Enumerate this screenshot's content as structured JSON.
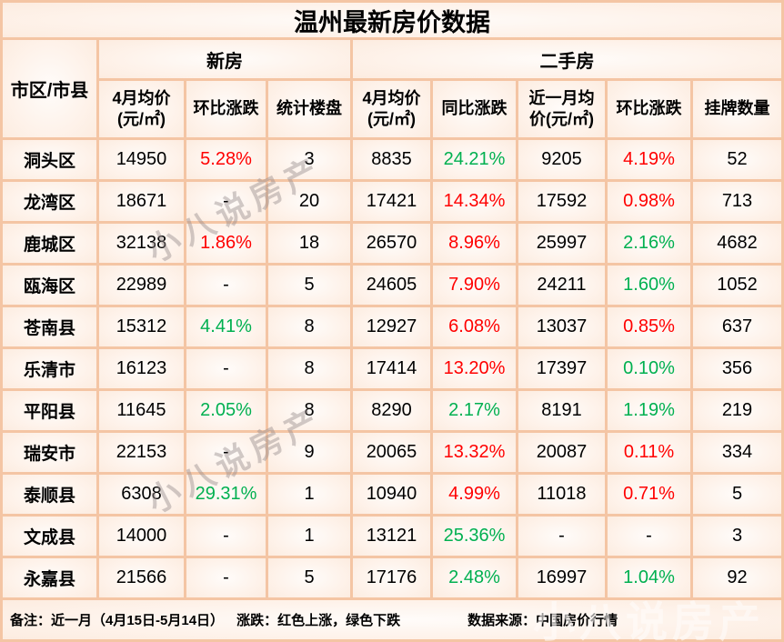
{
  "chart_data": {
    "type": "table",
    "title": "温州最新房价数据",
    "corner_header": "市区/市县",
    "groups": [
      {
        "label": "新房",
        "columns": 3
      },
      {
        "label": "二手房",
        "columns": 5
      }
    ],
    "columns": [
      "4月均价\n(元/㎡)",
      "环比涨跌",
      "统计楼盘",
      "4月均价\n(元/㎡)",
      "同比涨跌",
      "近一月均\n价(元/㎡)",
      "环比涨跌",
      "挂牌数量"
    ],
    "rows": [
      {
        "region": "洞头区",
        "cells": [
          {
            "t": "14950"
          },
          {
            "t": "5.28%",
            "c": "up"
          },
          {
            "t": "3"
          },
          {
            "t": "8835"
          },
          {
            "t": "24.21%",
            "c": "down"
          },
          {
            "t": "9205"
          },
          {
            "t": "4.19%",
            "c": "up"
          },
          {
            "t": "52"
          }
        ]
      },
      {
        "region": "龙湾区",
        "cells": [
          {
            "t": "18671"
          },
          {
            "t": "-"
          },
          {
            "t": "20"
          },
          {
            "t": "17421"
          },
          {
            "t": "14.34%",
            "c": "up"
          },
          {
            "t": "17592"
          },
          {
            "t": "0.98%",
            "c": "up"
          },
          {
            "t": "713"
          }
        ]
      },
      {
        "region": "鹿城区",
        "cells": [
          {
            "t": "32138"
          },
          {
            "t": "1.86%",
            "c": "up"
          },
          {
            "t": "18"
          },
          {
            "t": "26570"
          },
          {
            "t": "8.96%",
            "c": "up"
          },
          {
            "t": "25997"
          },
          {
            "t": "2.16%",
            "c": "down"
          },
          {
            "t": "4682"
          }
        ]
      },
      {
        "region": "瓯海区",
        "cells": [
          {
            "t": "22989"
          },
          {
            "t": "-"
          },
          {
            "t": "5"
          },
          {
            "t": "24605"
          },
          {
            "t": "7.90%",
            "c": "up"
          },
          {
            "t": "24211"
          },
          {
            "t": "1.60%",
            "c": "down"
          },
          {
            "t": "1052"
          }
        ]
      },
      {
        "region": "苍南县",
        "cells": [
          {
            "t": "15312"
          },
          {
            "t": "4.41%",
            "c": "down"
          },
          {
            "t": "8"
          },
          {
            "t": "12927"
          },
          {
            "t": "6.08%",
            "c": "up"
          },
          {
            "t": "13037"
          },
          {
            "t": "0.85%",
            "c": "up"
          },
          {
            "t": "637"
          }
        ]
      },
      {
        "region": "乐清市",
        "cells": [
          {
            "t": "16123"
          },
          {
            "t": "-"
          },
          {
            "t": "8"
          },
          {
            "t": "17414"
          },
          {
            "t": "13.20%",
            "c": "up"
          },
          {
            "t": "17397"
          },
          {
            "t": "0.10%",
            "c": "down"
          },
          {
            "t": "356"
          }
        ]
      },
      {
        "region": "平阳县",
        "cells": [
          {
            "t": "11645"
          },
          {
            "t": "2.05%",
            "c": "down"
          },
          {
            "t": "8"
          },
          {
            "t": "8290"
          },
          {
            "t": "2.17%",
            "c": "down"
          },
          {
            "t": "8191"
          },
          {
            "t": "1.19%",
            "c": "down"
          },
          {
            "t": "219"
          }
        ]
      },
      {
        "region": "瑞安市",
        "cells": [
          {
            "t": "22153"
          },
          {
            "t": "-"
          },
          {
            "t": "9"
          },
          {
            "t": "20065"
          },
          {
            "t": "13.32%",
            "c": "up"
          },
          {
            "t": "20087"
          },
          {
            "t": "0.11%",
            "c": "up"
          },
          {
            "t": "334"
          }
        ]
      },
      {
        "region": "泰顺县",
        "cells": [
          {
            "t": "6308"
          },
          {
            "t": "29.31%",
            "c": "down"
          },
          {
            "t": "1"
          },
          {
            "t": "10940"
          },
          {
            "t": "4.99%",
            "c": "up"
          },
          {
            "t": "11018"
          },
          {
            "t": "0.71%",
            "c": "up"
          },
          {
            "t": "5"
          }
        ]
      },
      {
        "region": "文成县",
        "cells": [
          {
            "t": "14000"
          },
          {
            "t": "-"
          },
          {
            "t": "1"
          },
          {
            "t": "13121"
          },
          {
            "t": "25.36%",
            "c": "down"
          },
          {
            "t": "-"
          },
          {
            "t": "-"
          },
          {
            "t": "3"
          }
        ]
      },
      {
        "region": "永嘉县",
        "cells": [
          {
            "t": "21566"
          },
          {
            "t": "-"
          },
          {
            "t": "5"
          },
          {
            "t": "17176"
          },
          {
            "t": "2.48%",
            "c": "down"
          },
          {
            "t": "16997"
          },
          {
            "t": "1.04%",
            "c": "down"
          },
          {
            "t": "92"
          }
        ]
      }
    ],
    "notes": "备注：近一月（4月15日-5月14日）　涨跌：红色上涨，绿色下跌　数据来源：中国房价行情"
  },
  "footer": {
    "note": "备注：近一月（4月15日-5月14日）",
    "legend": "涨跌：红色上涨，绿色下跌",
    "source": "数据来源：中国房价行情"
  },
  "watermark": {
    "diagonal": "小八说房产",
    "bottom": "小八说房产"
  },
  "colors": {
    "up": "#ff0000",
    "down": "#00b050",
    "border": "#f4c5a4",
    "background": "#fbe3d6"
  }
}
